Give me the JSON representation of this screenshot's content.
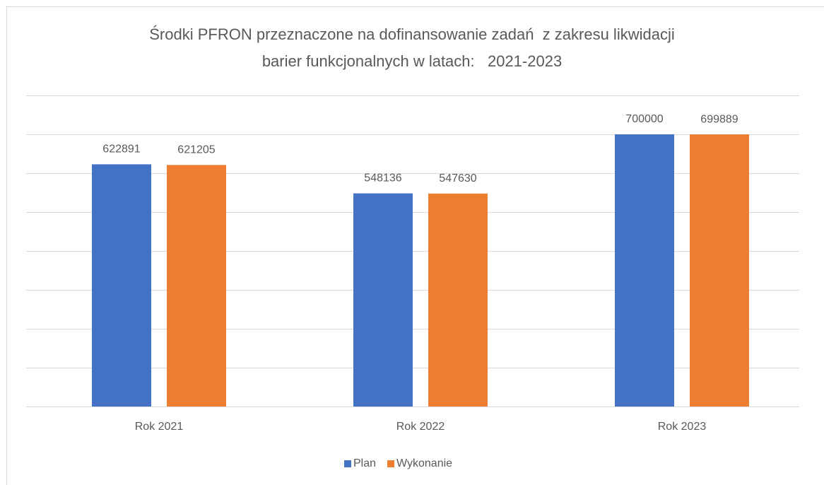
{
  "chart_data": {
    "type": "bar",
    "title": [
      "Środki PFRON przeznaczone na dofinansowanie zadań  z zakresu likwidacji",
      "barier funkcjonalnych w latach:   2021-2023"
    ],
    "categories": [
      "Rok 2021",
      "Rok 2022",
      "Rok 2023"
    ],
    "series": [
      {
        "name": "Plan",
        "color": "#4472c4",
        "values": [
          622891,
          548136,
          700000
        ]
      },
      {
        "name": "Wykonanie",
        "color": "#ed7d31",
        "values": [
          621205,
          547630,
          699889
        ]
      }
    ],
    "ylim": [
      0,
      800000
    ],
    "yticks": [
      0,
      100000,
      200000,
      300000,
      400000,
      500000,
      600000,
      700000,
      800000
    ],
    "grid": true,
    "legend": "bottom"
  }
}
